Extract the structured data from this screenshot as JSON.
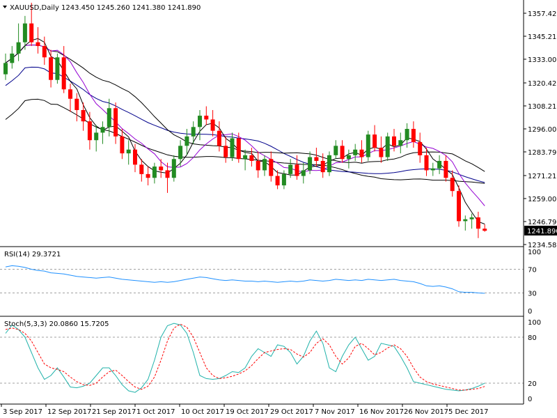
{
  "header": {
    "symbol": "XAUUSD,Daily",
    "ohlc": "1243.450 1245.260 1241.380 1241.890"
  },
  "rsi_panel": {
    "title": "RSI(14) 29.3721",
    "levels": [
      "100",
      "70",
      "30",
      "0"
    ]
  },
  "stoch_panel": {
    "title": "Stoch(5,3,3) 20.0860 15.7205",
    "levels": [
      "100",
      "80",
      "20",
      "0"
    ]
  },
  "price_axis": {
    "ticks": [
      "1357.420",
      "1345.210",
      "1333.000",
      "1320.420",
      "1308.210",
      "1296.000",
      "1283.790",
      "1271.210",
      "1259.000",
      "1246.790",
      "1234.580"
    ],
    "current": "1241.890"
  },
  "x_axis": {
    "ticks": [
      "3 Sep 2017",
      "12 Sep 2017",
      "21 Sep 2017",
      "1 Oct 2017",
      "10 Oct 2017",
      "19 Oct 2017",
      "29 Oct 2017",
      "7 Nov 2017",
      "16 Nov 2017",
      "26 Nov 2017",
      "5 Dec 2017"
    ]
  },
  "colors": {
    "bull": "#228b22",
    "bear": "#ff0000",
    "ma_fast": "#000000",
    "ma_mid": "#9400d3",
    "ma_slow": "#000000",
    "ma_long_blue": "#00008b",
    "ma_200": "#000000",
    "rsi": "#1e90ff",
    "stoch_k": "#20b2aa",
    "stoch_d": "#ff0000"
  },
  "chart_data": {
    "type": "candlestick",
    "interval": "daily",
    "symbol": "XAUUSD",
    "price_range": [
      1234.58,
      1362
    ],
    "candles": [
      [
        1325,
        1336,
        1322,
        1331
      ],
      [
        1331,
        1340,
        1328,
        1336
      ],
      [
        1336,
        1352,
        1332,
        1342
      ],
      [
        1342,
        1356,
        1338,
        1352
      ],
      [
        1352,
        1363,
        1340,
        1342
      ],
      [
        1342,
        1350,
        1336,
        1340
      ],
      [
        1340,
        1345,
        1330,
        1334
      ],
      [
        1334,
        1338,
        1318,
        1322
      ],
      [
        1322,
        1336,
        1320,
        1334
      ],
      [
        1334,
        1340,
        1315,
        1317
      ],
      [
        1317,
        1320,
        1305,
        1312
      ],
      [
        1312,
        1315,
        1300,
        1306
      ],
      [
        1306,
        1310,
        1295,
        1300
      ],
      [
        1300,
        1305,
        1285,
        1290
      ],
      [
        1290,
        1298,
        1284,
        1294
      ],
      [
        1294,
        1300,
        1288,
        1297
      ],
      [
        1297,
        1312,
        1292,
        1307
      ],
      [
        1307,
        1310,
        1288,
        1292
      ],
      [
        1292,
        1296,
        1280,
        1283
      ],
      [
        1283,
        1290,
        1277,
        1285
      ],
      [
        1285,
        1288,
        1273,
        1277
      ],
      [
        1277,
        1280,
        1268,
        1272
      ],
      [
        1272,
        1276,
        1266,
        1270
      ],
      [
        1270,
        1278,
        1267,
        1276
      ],
      [
        1276,
        1280,
        1270,
        1274
      ],
      [
        1274,
        1278,
        1262,
        1270
      ],
      [
        1270,
        1282,
        1268,
        1280
      ],
      [
        1280,
        1290,
        1276,
        1287
      ],
      [
        1287,
        1296,
        1282,
        1292
      ],
      [
        1292,
        1300,
        1288,
        1297
      ],
      [
        1297,
        1306,
        1290,
        1303
      ],
      [
        1303,
        1308,
        1298,
        1301
      ],
      [
        1301,
        1306,
        1292,
        1295
      ],
      [
        1295,
        1300,
        1284,
        1287
      ],
      [
        1287,
        1292,
        1278,
        1281
      ],
      [
        1281,
        1294,
        1279,
        1291
      ],
      [
        1291,
        1294,
        1278,
        1280
      ],
      [
        1280,
        1285,
        1274,
        1282
      ],
      [
        1282,
        1286,
        1276,
        1279
      ],
      [
        1279,
        1284,
        1270,
        1274
      ],
      [
        1274,
        1282,
        1271,
        1280
      ],
      [
        1280,
        1284,
        1268,
        1271
      ],
      [
        1271,
        1274,
        1264,
        1266
      ],
      [
        1266,
        1274,
        1264,
        1272
      ],
      [
        1272,
        1280,
        1270,
        1277
      ],
      [
        1277,
        1282,
        1269,
        1271
      ],
      [
        1271,
        1278,
        1267,
        1274
      ],
      [
        1274,
        1284,
        1272,
        1281
      ],
      [
        1281,
        1286,
        1276,
        1279
      ],
      [
        1279,
        1283,
        1270,
        1273
      ],
      [
        1273,
        1284,
        1271,
        1282
      ],
      [
        1282,
        1290,
        1280,
        1287
      ],
      [
        1287,
        1290,
        1278,
        1280
      ],
      [
        1280,
        1285,
        1275,
        1282
      ],
      [
        1282,
        1288,
        1279,
        1285
      ],
      [
        1285,
        1290,
        1278,
        1281
      ],
      [
        1281,
        1295,
        1279,
        1293
      ],
      [
        1293,
        1298,
        1284,
        1286
      ],
      [
        1286,
        1292,
        1278,
        1281
      ],
      [
        1281,
        1294,
        1279,
        1292
      ],
      [
        1292,
        1296,
        1284,
        1287
      ],
      [
        1287,
        1294,
        1283,
        1290
      ],
      [
        1290,
        1299,
        1286,
        1296
      ],
      [
        1296,
        1300,
        1286,
        1289
      ],
      [
        1289,
        1294,
        1278,
        1282
      ],
      [
        1282,
        1286,
        1271,
        1274
      ],
      [
        1274,
        1278,
        1271,
        1275
      ],
      [
        1275,
        1282,
        1272,
        1279
      ],
      [
        1279,
        1282,
        1268,
        1270
      ],
      [
        1270,
        1274,
        1260,
        1263
      ],
      [
        1263,
        1266,
        1244,
        1247
      ],
      [
        1247,
        1250,
        1242,
        1248
      ],
      [
        1248,
        1251,
        1243,
        1249
      ],
      [
        1249,
        1252,
        1238,
        1243
      ],
      [
        1243,
        1245.26,
        1241.38,
        1241.89
      ]
    ],
    "rsi": [
      74,
      76,
      75,
      73,
      70,
      68,
      67,
      64,
      63,
      62,
      60,
      58,
      57,
      56,
      55,
      56,
      57,
      55,
      53,
      52,
      51,
      50,
      49,
      48,
      49,
      48,
      49,
      51,
      53,
      55,
      57,
      56,
      54,
      52,
      51,
      52,
      51,
      50,
      50,
      49,
      50,
      49,
      48,
      49,
      50,
      49,
      50,
      52,
      51,
      50,
      51,
      53,
      52,
      51,
      52,
      51,
      53,
      52,
      51,
      52,
      53,
      51,
      50,
      49,
      46,
      42,
      41,
      42,
      40,
      37,
      32,
      31,
      31,
      30,
      29.3721
    ],
    "stoch_k": [
      85,
      96,
      90,
      80,
      60,
      40,
      25,
      30,
      40,
      28,
      15,
      14,
      16,
      20,
      30,
      40,
      40,
      30,
      18,
      10,
      8,
      14,
      25,
      50,
      80,
      95,
      98,
      96,
      85,
      60,
      30,
      26,
      25,
      26,
      30,
      35,
      34,
      40,
      55,
      65,
      60,
      55,
      70,
      68,
      60,
      45,
      55,
      75,
      88,
      72,
      40,
      35,
      55,
      70,
      80,
      65,
      50,
      55,
      72,
      70,
      68,
      55,
      40,
      22,
      20,
      18,
      16,
      14,
      12,
      11,
      10,
      11,
      13,
      16,
      20.086
    ],
    "stoch_d": [
      90,
      92,
      90,
      85,
      75,
      60,
      45,
      40,
      38,
      35,
      28,
      22,
      18,
      17,
      20,
      28,
      35,
      37,
      30,
      22,
      15,
      12,
      16,
      28,
      50,
      75,
      92,
      97,
      93,
      80,
      60,
      40,
      30,
      26,
      27,
      29,
      32,
      36,
      43,
      52,
      60,
      62,
      64,
      65,
      64,
      58,
      54,
      60,
      72,
      78,
      70,
      55,
      45,
      53,
      68,
      72,
      65,
      57,
      60,
      66,
      70,
      65,
      55,
      40,
      28,
      22,
      19,
      17,
      15,
      13,
      11,
      11,
      12,
      13,
      15.7205
    ]
  }
}
